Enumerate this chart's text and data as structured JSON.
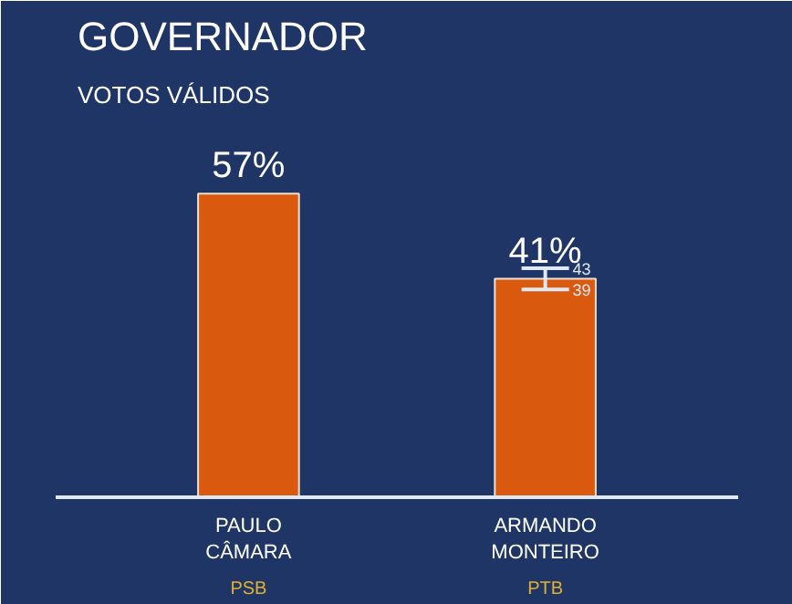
{
  "chart_data": {
    "type": "bar",
    "title": "GOVERNADOR",
    "subtitle": "VOTOS VÁLIDOS",
    "categories": [
      "PAULO CÂMARA",
      "ARMANDO MONTEIRO"
    ],
    "values": [
      57,
      41
    ],
    "value_labels": [
      "57%",
      "41%"
    ],
    "errors": [
      null,
      [
        2,
        2
      ]
    ],
    "color": "#d9590f",
    "annotations": [
      "PSB",
      "PTB",
      "43",
      "39"
    ],
    "grid": false
  }
}
